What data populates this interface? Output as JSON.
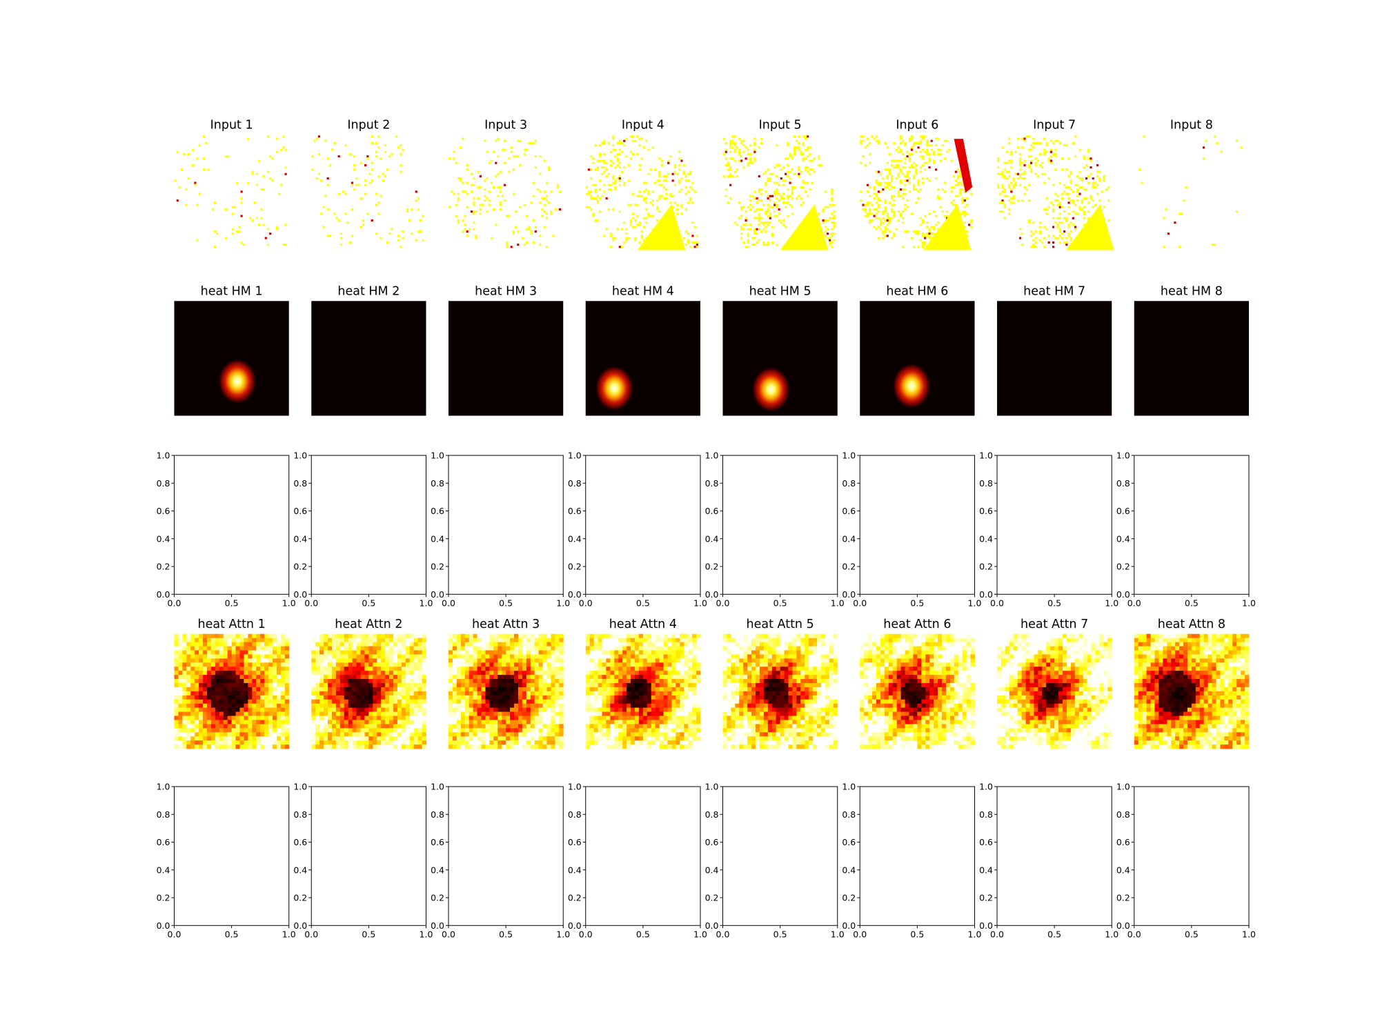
{
  "figure": {
    "background": "#ffffff",
    "colormap": "hot",
    "colormap_stops": [
      "#0b0000",
      "#6a0000",
      "#c80000",
      "#ff3c00",
      "#ff9900",
      "#ffe000",
      "#ffff80",
      "#ffffff"
    ]
  },
  "rows": {
    "input": {
      "titles": [
        "Input 1",
        "Input 2",
        "Input 3",
        "Input 4",
        "Input 5",
        "Input 6",
        "Input 7",
        "Input 8"
      ],
      "kind": "image",
      "colormap": "hot",
      "axis": "off"
    },
    "heatmap": {
      "titles": [
        "heat HM 1",
        "heat HM 2",
        "heat HM 3",
        "heat HM 4",
        "heat HM 5",
        "heat HM 6",
        "heat HM 7",
        "heat HM 8"
      ],
      "kind": "heatmap",
      "colormap": "hot",
      "axis": "off",
      "blob_present": [
        true,
        false,
        false,
        true,
        true,
        true,
        false,
        false
      ]
    },
    "empty_axes_a": {
      "kind": "empty-axes",
      "xlim": [
        0.0,
        1.0
      ],
      "ylim": [
        0.0,
        1.0
      ],
      "xticks": [
        "0.0",
        "0.5",
        "1.0"
      ],
      "yticks": [
        "0.0",
        "0.2",
        "0.4",
        "0.6",
        "0.8",
        "1.0"
      ]
    },
    "attention": {
      "titles": [
        "heat Attn 1",
        "heat Attn 2",
        "heat Attn 3",
        "heat Attn 4",
        "heat Attn 5",
        "heat Attn 6",
        "heat Attn 7",
        "heat Attn 8"
      ],
      "kind": "heatmap",
      "colormap": "hot",
      "axis": "off"
    },
    "empty_axes_b": {
      "kind": "empty-axes",
      "xlim": [
        0.0,
        1.0
      ],
      "ylim": [
        0.0,
        1.0
      ],
      "xticks": [
        "0.0",
        "0.5",
        "1.0"
      ],
      "yticks": [
        "0.0",
        "0.2",
        "0.4",
        "0.6",
        "0.8",
        "1.0"
      ]
    }
  },
  "chart_data": [
    {
      "type": "heatmap",
      "panels": [
        "heat HM 1",
        "heat HM 2",
        "heat HM 3",
        "heat HM 4",
        "heat HM 5",
        "heat HM 6",
        "heat HM 7",
        "heat HM 8"
      ],
      "blob_present": [
        true,
        false,
        false,
        true,
        true,
        true,
        false,
        false
      ]
    },
    {
      "type": "heatmap",
      "panels": [
        "heat Attn 1",
        "heat Attn 2",
        "heat Attn 3",
        "heat Attn 4",
        "heat Attn 5",
        "heat Attn 6",
        "heat Attn 7",
        "heat Attn 8"
      ]
    },
    {
      "type": "scatter",
      "note_panels": 16,
      "xlim": [
        0.0,
        1.0
      ],
      "ylim": [
        0.0,
        1.0
      ],
      "xticks": [
        "0.0",
        "0.5",
        "1.0"
      ],
      "yticks": [
        "0.0",
        "0.2",
        "0.4",
        "0.6",
        "0.8",
        "1.0"
      ],
      "series": []
    }
  ]
}
